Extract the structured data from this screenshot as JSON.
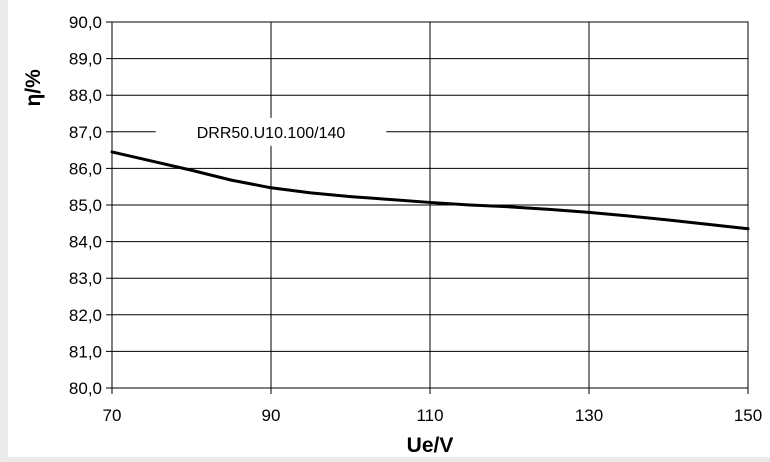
{
  "chart_data": {
    "type": "line",
    "title": "",
    "xlabel": "Ue/V",
    "ylabel": "η/%",
    "xlim": [
      70,
      150
    ],
    "ylim": [
      80,
      90
    ],
    "x_ticks": [
      70,
      90,
      110,
      130,
      150
    ],
    "x_tick_labels": [
      "70",
      "90",
      "110",
      "130",
      "150"
    ],
    "y_ticks": [
      80,
      81,
      82,
      83,
      84,
      85,
      86,
      87,
      88,
      89,
      90
    ],
    "y_tick_labels": [
      "80,0",
      "81,0",
      "82,0",
      "83,0",
      "84,0",
      "85,0",
      "86,0",
      "87,0",
      "88,0",
      "89,0",
      "90,0"
    ],
    "grid": true,
    "series": [
      {
        "name": "DRR50.U10.100/140",
        "x": [
          70,
          75,
          80,
          85,
          90,
          95,
          100,
          105,
          110,
          115,
          120,
          125,
          130,
          135,
          140,
          145,
          150
        ],
        "y": [
          86.45,
          86.2,
          85.95,
          85.68,
          85.47,
          85.33,
          85.23,
          85.15,
          85.07,
          85.0,
          84.95,
          84.88,
          84.8,
          84.7,
          84.59,
          84.47,
          84.35
        ],
        "color": "#000000"
      }
    ]
  }
}
